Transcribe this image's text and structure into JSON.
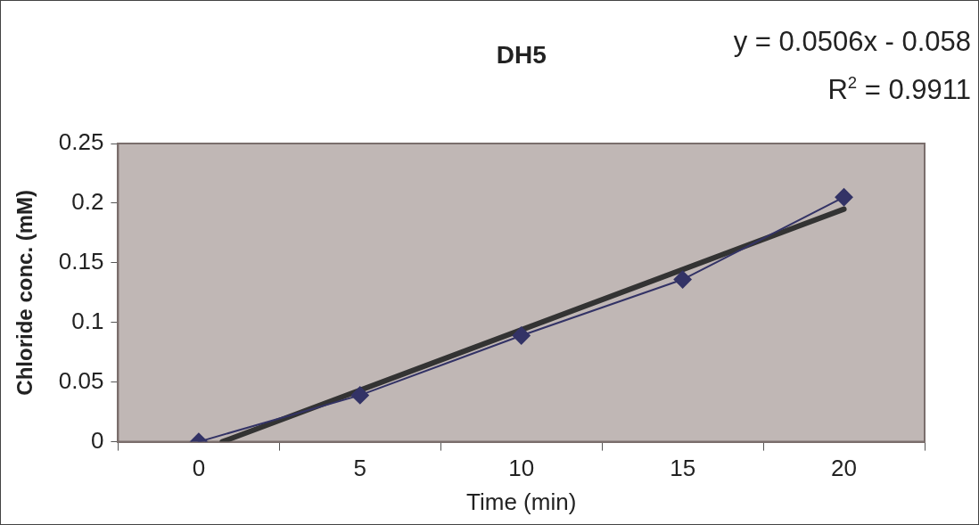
{
  "chart_data": {
    "type": "line",
    "title": "DH5",
    "xlabel": "Time (min)",
    "ylabel": "Chloride conc. (mM)",
    "x": [
      0,
      5,
      10,
      15,
      20
    ],
    "series": [
      {
        "color": "#333366",
        "values": [
          0,
          0.039,
          0.089,
          0.136,
          0.205
        ],
        "marker": "diamond"
      },
      {
        "color": "#333333",
        "x": [
          0.73,
          20
        ],
        "values": [
          0,
          0.195
        ],
        "marker": "none"
      }
    ],
    "xlim": [
      -2.5,
      22.5
    ],
    "xticks": [
      {
        "value": -2.5,
        "label": null
      },
      0,
      {
        "value": 2.5,
        "label": null
      },
      5,
      {
        "value": 7.5,
        "label": null
      },
      10,
      {
        "value": 12.5,
        "label": null
      },
      15,
      {
        "value": 17.5,
        "label": null
      },
      20,
      {
        "value": 22.5,
        "label": null
      }
    ],
    "ylim": [
      0,
      0.25
    ],
    "yticks": [
      0,
      0.05,
      0.1,
      0.15,
      0.2,
      0.25
    ],
    "grid": false,
    "legend": false,
    "line_style": "solid",
    "annotations": [
      "y = 0.0506x - 0.058",
      "R$^{2}$ = 0.9911"
    ]
  }
}
